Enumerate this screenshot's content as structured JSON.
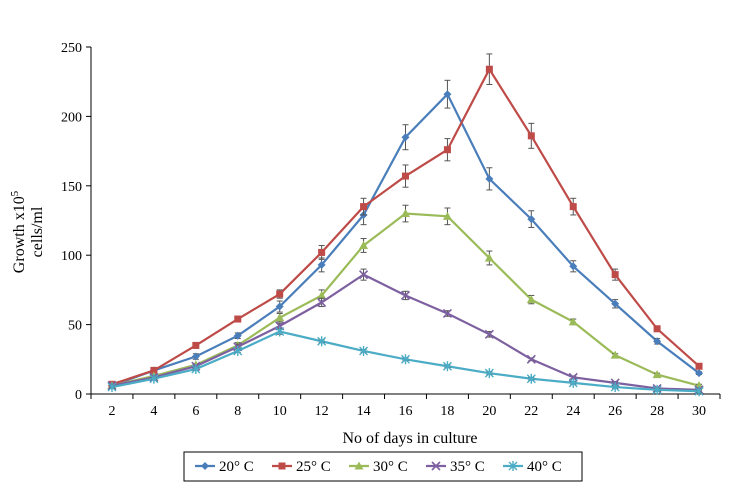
{
  "chart_data": {
    "type": "line",
    "title": "",
    "xlabel": "No of days in culture",
    "ylabel_line1": "Growth x10",
    "ylabel_sup": "5",
    "ylabel_line2": "cells/ml",
    "x": [
      2,
      4,
      6,
      8,
      10,
      12,
      14,
      16,
      18,
      20,
      22,
      24,
      26,
      28,
      30
    ],
    "x_tick_labels": [
      "2",
      "4",
      "6",
      "8",
      "10",
      "12",
      "14",
      "16",
      "18",
      "20",
      "22",
      "24",
      "26",
      "28",
      "30"
    ],
    "ylim": [
      0,
      250
    ],
    "y_ticks": [
      0,
      50,
      100,
      150,
      200,
      250
    ],
    "y_tick_labels": [
      "0",
      "50",
      "100",
      "150",
      "200",
      "250"
    ],
    "grid": false,
    "legend_position": "bottom",
    "series": [
      {
        "name": "20° C",
        "color": "#4a7ebb",
        "marker": "diamond",
        "values": [
          6,
          17,
          27,
          42,
          63,
          93,
          129,
          185,
          216,
          155,
          126,
          92,
          65,
          38,
          15
        ],
        "errors": [
          1,
          1,
          2,
          2,
          4,
          5,
          7,
          9,
          10,
          8,
          6,
          4,
          3,
          2,
          1
        ]
      },
      {
        "name": "25° C",
        "color": "#be4b48",
        "marker": "square",
        "values": [
          7,
          17,
          35,
          54,
          72,
          102,
          135,
          157,
          176,
          234,
          186,
          135,
          86,
          47,
          20
        ],
        "errors": [
          1,
          1,
          2,
          2,
          3,
          5,
          6,
          8,
          8,
          11,
          9,
          6,
          4,
          2,
          1
        ]
      },
      {
        "name": "30° C",
        "color": "#9bbb59",
        "marker": "triangle",
        "values": [
          6,
          13,
          21,
          35,
          55,
          71,
          107,
          130,
          128,
          98,
          68,
          52,
          28,
          14,
          6
        ],
        "errors": [
          1,
          1,
          1,
          2,
          3,
          4,
          5,
          6,
          6,
          5,
          3,
          2,
          1,
          1,
          1
        ]
      },
      {
        "name": "35° C",
        "color": "#7d60a0",
        "marker": "x",
        "values": [
          6,
          12,
          20,
          34,
          49,
          66,
          86,
          71,
          58,
          43,
          25,
          12,
          8,
          4,
          3
        ],
        "errors": [
          1,
          1,
          1,
          2,
          2,
          3,
          4,
          3,
          2,
          2,
          1,
          1,
          1,
          1,
          1
        ]
      },
      {
        "name": "40° C",
        "color": "#4bacc6",
        "marker": "star",
        "values": [
          5,
          11,
          18,
          31,
          45,
          38,
          31,
          25,
          20,
          15,
          11,
          8,
          5,
          3,
          2
        ],
        "errors": [
          1,
          1,
          1,
          1,
          2,
          1,
          1,
          1,
          1,
          1,
          1,
          1,
          1,
          1,
          1
        ]
      }
    ]
  }
}
